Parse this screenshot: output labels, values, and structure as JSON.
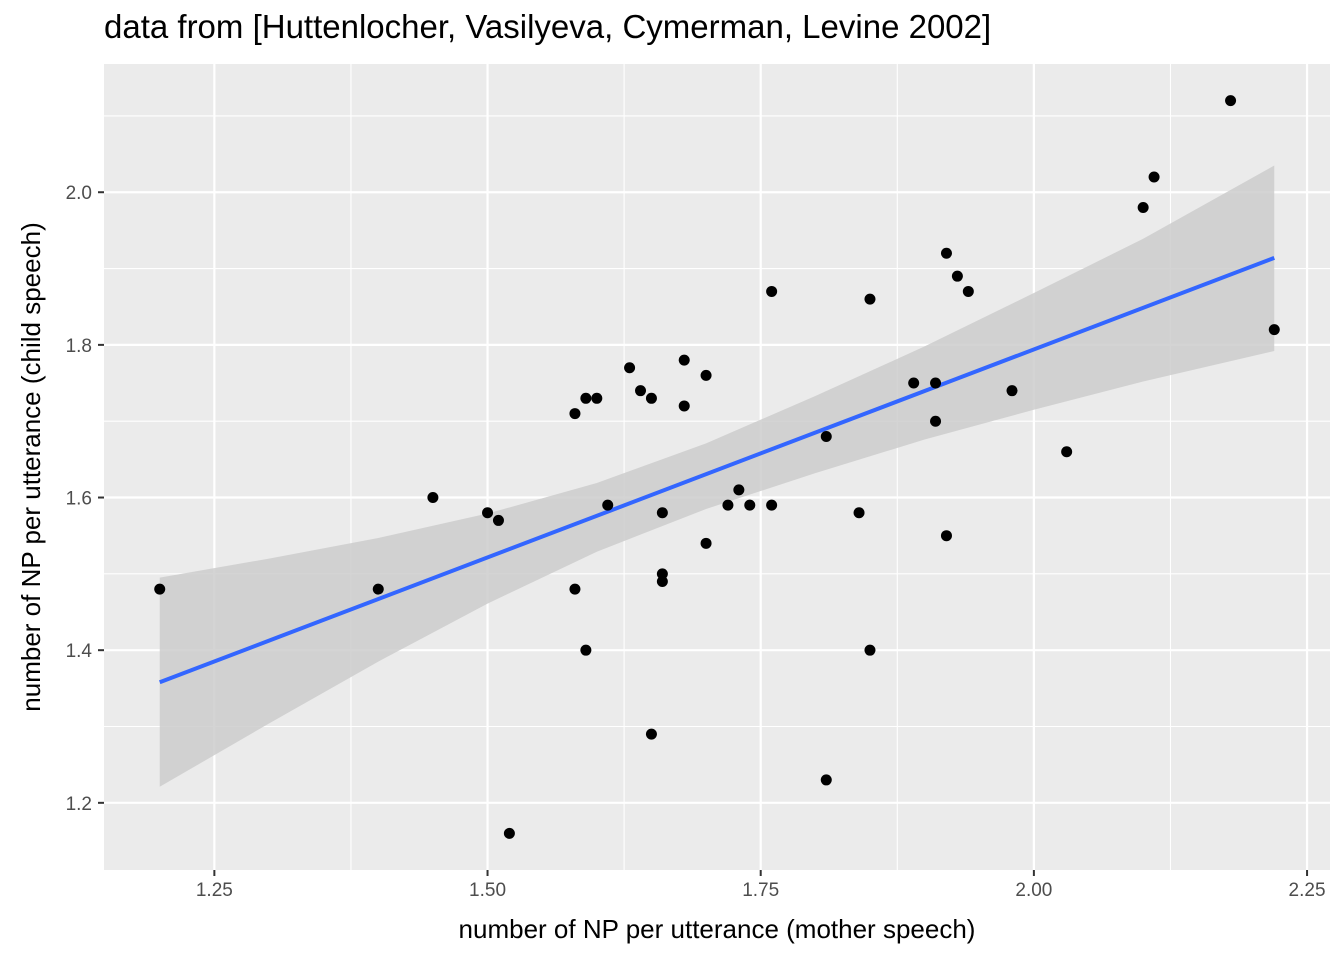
{
  "chart_data": {
    "type": "scatter",
    "title": "data from [Huttenlocher, Vasilyeva, Cymerman, Levine 2002]",
    "xlabel": "number of NP per utterance (mother speech)",
    "ylabel": "number of NP per utterance (child speech)",
    "xlim": [
      1.149,
      2.271
    ],
    "ylim": [
      1.112,
      2.168
    ],
    "x_ticks": [
      1.25,
      1.5,
      1.75,
      2.0,
      2.25
    ],
    "x_tick_labels": [
      "1.25",
      "1.50",
      "1.75",
      "2.00",
      "2.25"
    ],
    "y_ticks": [
      1.2,
      1.4,
      1.6,
      1.8,
      2.0
    ],
    "y_tick_labels": [
      "1.2",
      "1.4",
      "1.6",
      "1.8",
      "2.0"
    ],
    "grid": true,
    "points": [
      {
        "x": 1.2,
        "y": 1.48
      },
      {
        "x": 1.4,
        "y": 1.48
      },
      {
        "x": 1.45,
        "y": 1.6
      },
      {
        "x": 1.5,
        "y": 1.58
      },
      {
        "x": 1.51,
        "y": 1.57
      },
      {
        "x": 1.52,
        "y": 1.16
      },
      {
        "x": 1.58,
        "y": 1.71
      },
      {
        "x": 1.58,
        "y": 1.48
      },
      {
        "x": 1.59,
        "y": 1.73
      },
      {
        "x": 1.6,
        "y": 1.73
      },
      {
        "x": 1.59,
        "y": 1.4
      },
      {
        "x": 1.61,
        "y": 1.59
      },
      {
        "x": 1.63,
        "y": 1.77
      },
      {
        "x": 1.64,
        "y": 1.74
      },
      {
        "x": 1.65,
        "y": 1.73
      },
      {
        "x": 1.65,
        "y": 1.29
      },
      {
        "x": 1.66,
        "y": 1.58
      },
      {
        "x": 1.66,
        "y": 1.5
      },
      {
        "x": 1.66,
        "y": 1.49
      },
      {
        "x": 1.68,
        "y": 1.78
      },
      {
        "x": 1.68,
        "y": 1.72
      },
      {
        "x": 1.7,
        "y": 1.76
      },
      {
        "x": 1.7,
        "y": 1.54
      },
      {
        "x": 1.72,
        "y": 1.59
      },
      {
        "x": 1.73,
        "y": 1.61
      },
      {
        "x": 1.74,
        "y": 1.59
      },
      {
        "x": 1.76,
        "y": 1.87
      },
      {
        "x": 1.76,
        "y": 1.59
      },
      {
        "x": 1.81,
        "y": 1.68
      },
      {
        "x": 1.81,
        "y": 1.23
      },
      {
        "x": 1.84,
        "y": 1.58
      },
      {
        "x": 1.85,
        "y": 1.86
      },
      {
        "x": 1.85,
        "y": 1.4
      },
      {
        "x": 1.89,
        "y": 1.75
      },
      {
        "x": 1.91,
        "y": 1.75
      },
      {
        "x": 1.91,
        "y": 1.7
      },
      {
        "x": 1.92,
        "y": 1.92
      },
      {
        "x": 1.92,
        "y": 1.55
      },
      {
        "x": 1.93,
        "y": 1.89
      },
      {
        "x": 1.94,
        "y": 1.87
      },
      {
        "x": 1.98,
        "y": 1.74
      },
      {
        "x": 2.03,
        "y": 1.66
      },
      {
        "x": 2.1,
        "y": 1.98
      },
      {
        "x": 2.11,
        "y": 2.02
      },
      {
        "x": 2.18,
        "y": 2.12
      },
      {
        "x": 2.22,
        "y": 1.82
      }
    ],
    "fit_line": {
      "x": [
        1.2,
        2.22
      ],
      "y": [
        1.358,
        1.914
      ]
    },
    "confidence_band": {
      "x": [
        1.2,
        1.3,
        1.4,
        1.5,
        1.6,
        1.7,
        1.8,
        1.9,
        2.0,
        2.1,
        2.22
      ],
      "lower": [
        1.221,
        1.304,
        1.385,
        1.461,
        1.529,
        1.585,
        1.632,
        1.676,
        1.715,
        1.752,
        1.792
      ],
      "upper": [
        1.495,
        1.52,
        1.547,
        1.579,
        1.619,
        1.671,
        1.733,
        1.798,
        1.868,
        1.939,
        2.035
      ]
    },
    "colors": {
      "panel": "#ebebeb",
      "grid_major": "#ffffff",
      "points": "#000000",
      "fit_line": "#3366ff",
      "band": "#cccccc"
    }
  }
}
